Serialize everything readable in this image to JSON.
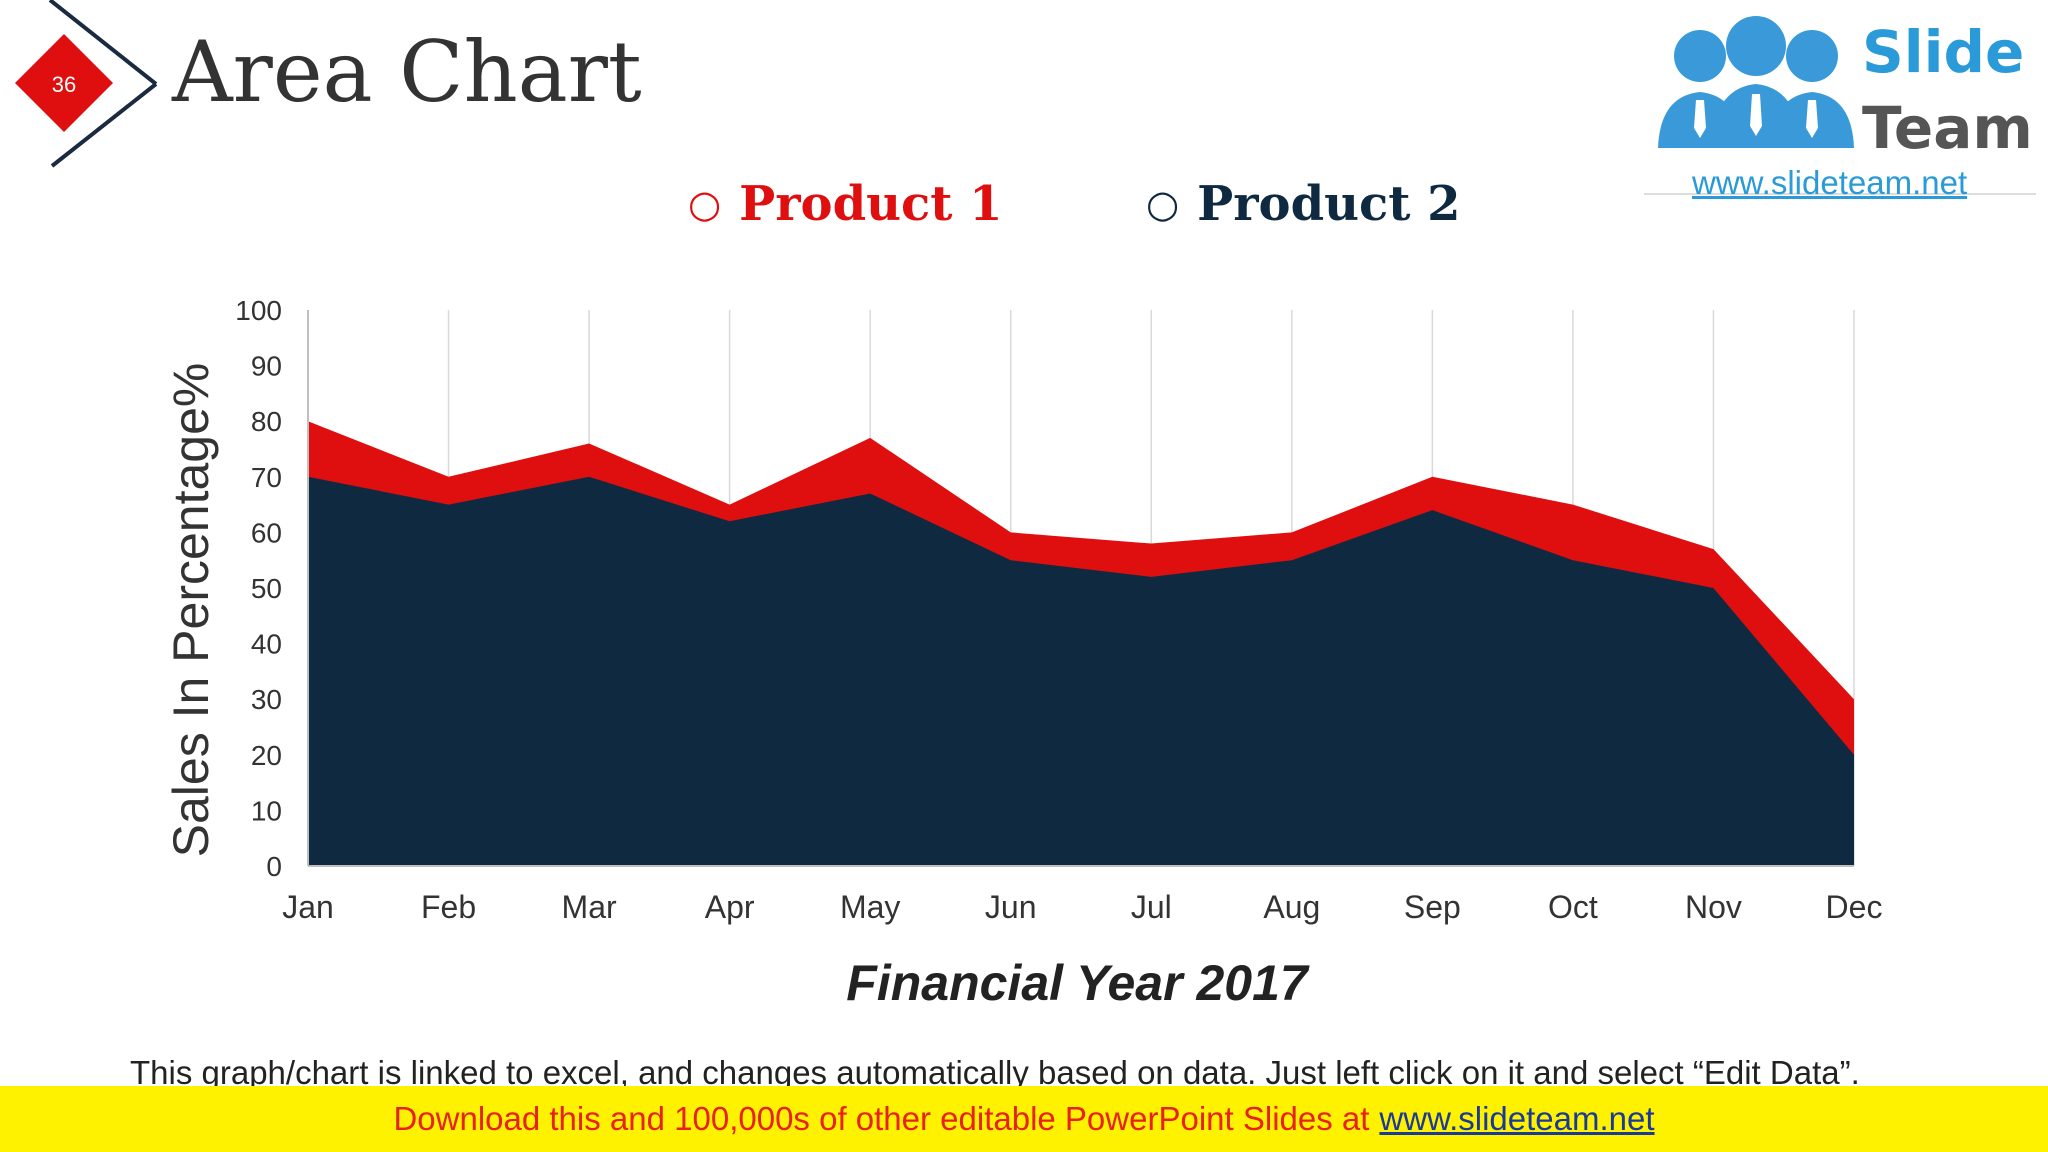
{
  "slide": {
    "number": "36",
    "title": "Area Chart"
  },
  "logo": {
    "line1": "Slide",
    "line2": "Team",
    "url": "www.slideteam.net"
  },
  "chart_data": {
    "type": "area",
    "stacked": false,
    "title": "",
    "xlabel": "Financial Year 2017",
    "ylabel": "Sales In Percentage%",
    "categories": [
      "Jan",
      "Feb",
      "Mar",
      "Apr",
      "May",
      "Jun",
      "Jul",
      "Aug",
      "Sep",
      "Oct",
      "Nov",
      "Dec"
    ],
    "ylim": [
      0,
      100
    ],
    "yticks": [
      "0",
      "10",
      "20",
      "30",
      "40",
      "50",
      "60",
      "70",
      "80",
      "90",
      "100"
    ],
    "legend_position": "top",
    "grid": "vertical",
    "series": [
      {
        "name": "Product 1",
        "color": "#e00f0f",
        "values": [
          80,
          70,
          76,
          65,
          77,
          60,
          58,
          60,
          70,
          65,
          57,
          30
        ]
      },
      {
        "name": "Product 2",
        "color": "#0f2a40",
        "values": [
          70,
          65,
          70,
          62,
          67,
          55,
          52,
          55,
          64,
          55,
          50,
          20
        ]
      }
    ]
  },
  "footnote": "This graph/chart is linked to excel, and changes automatically based on data. Just left click on it and select “Edit Data”.",
  "banner": {
    "text": "Download this and 100,000s of other editable PowerPoint Slides at",
    "link": "www.slideteam.net"
  }
}
